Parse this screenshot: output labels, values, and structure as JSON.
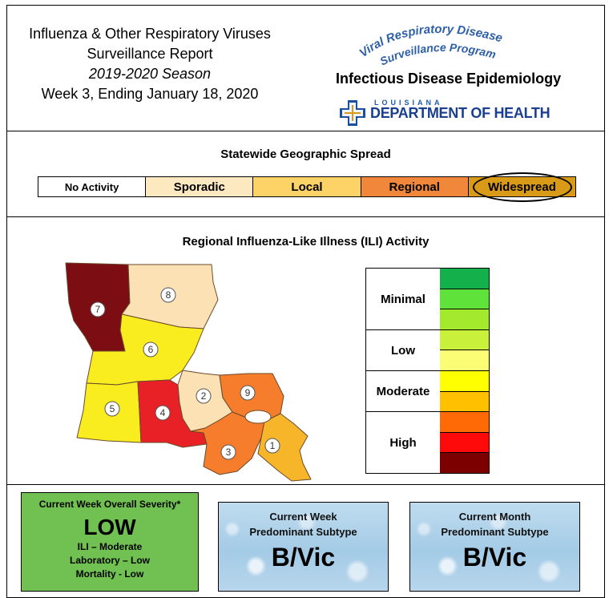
{
  "header": {
    "title_line1": "Influenza & Other Respiratory Viruses",
    "title_line2": "Surveillance Report",
    "season": "2019-2020 Season",
    "week": "Week 3, Ending January 18, 2020",
    "program_line1": "Viral Respiratory Disease",
    "program_line2": "Surveillance Program",
    "division": "Infectious Disease Epidemiology",
    "ldh_state": "LOUISIANA",
    "ldh_dept": "DEPARTMENT OF HEALTH"
  },
  "geographic_spread": {
    "title": "Statewide Geographic Spread",
    "levels": [
      "No Activity",
      "Sporadic",
      "Local",
      "Regional",
      "Widespread"
    ],
    "colors": [
      "#ffffff",
      "#fde9c0",
      "#fdd266",
      "#f0873a",
      "#d99a18"
    ],
    "current": "Widespread"
  },
  "ili": {
    "title": "Regional Influenza-Like Illness (ILI) Activity",
    "legend": [
      {
        "label": "Minimal",
        "colors": [
          "#13b04b",
          "#5fe33a",
          "#a3ea2c"
        ]
      },
      {
        "label": "Low",
        "colors": [
          "#c9f03a",
          "#fbfd74"
        ]
      },
      {
        "label": "Moderate",
        "colors": [
          "#ffff00",
          "#ffc000"
        ]
      },
      {
        "label": "High",
        "colors": [
          "#ff6a06",
          "#ff0a0a",
          "#7c0000"
        ]
      }
    ],
    "regions": [
      {
        "id": "1",
        "color": "#f7b52a"
      },
      {
        "id": "2",
        "color": "#fbe1b3"
      },
      {
        "id": "3",
        "color": "#f67d2b"
      },
      {
        "id": "4",
        "color": "#e82127"
      },
      {
        "id": "5",
        "color": "#f9ec1f"
      },
      {
        "id": "6",
        "color": "#f9ec1f"
      },
      {
        "id": "7",
        "color": "#7c0d12"
      },
      {
        "id": "8",
        "color": "#fbe1b3"
      },
      {
        "id": "9",
        "color": "#f67d2b"
      }
    ]
  },
  "severity": {
    "title": "Current Week Overall Severity*",
    "level": "LOW",
    "ili": "ILI – Moderate",
    "laboratory": "Laboratory – Low",
    "mortality": "Mortality - Low"
  },
  "week_subtype": {
    "line1": "Current Week",
    "line2": "Predominant Subtype",
    "value": "B/Vic"
  },
  "month_subtype": {
    "line1": "Current Month",
    "line2": "Predominant Subtype",
    "value": "B/Vic"
  }
}
